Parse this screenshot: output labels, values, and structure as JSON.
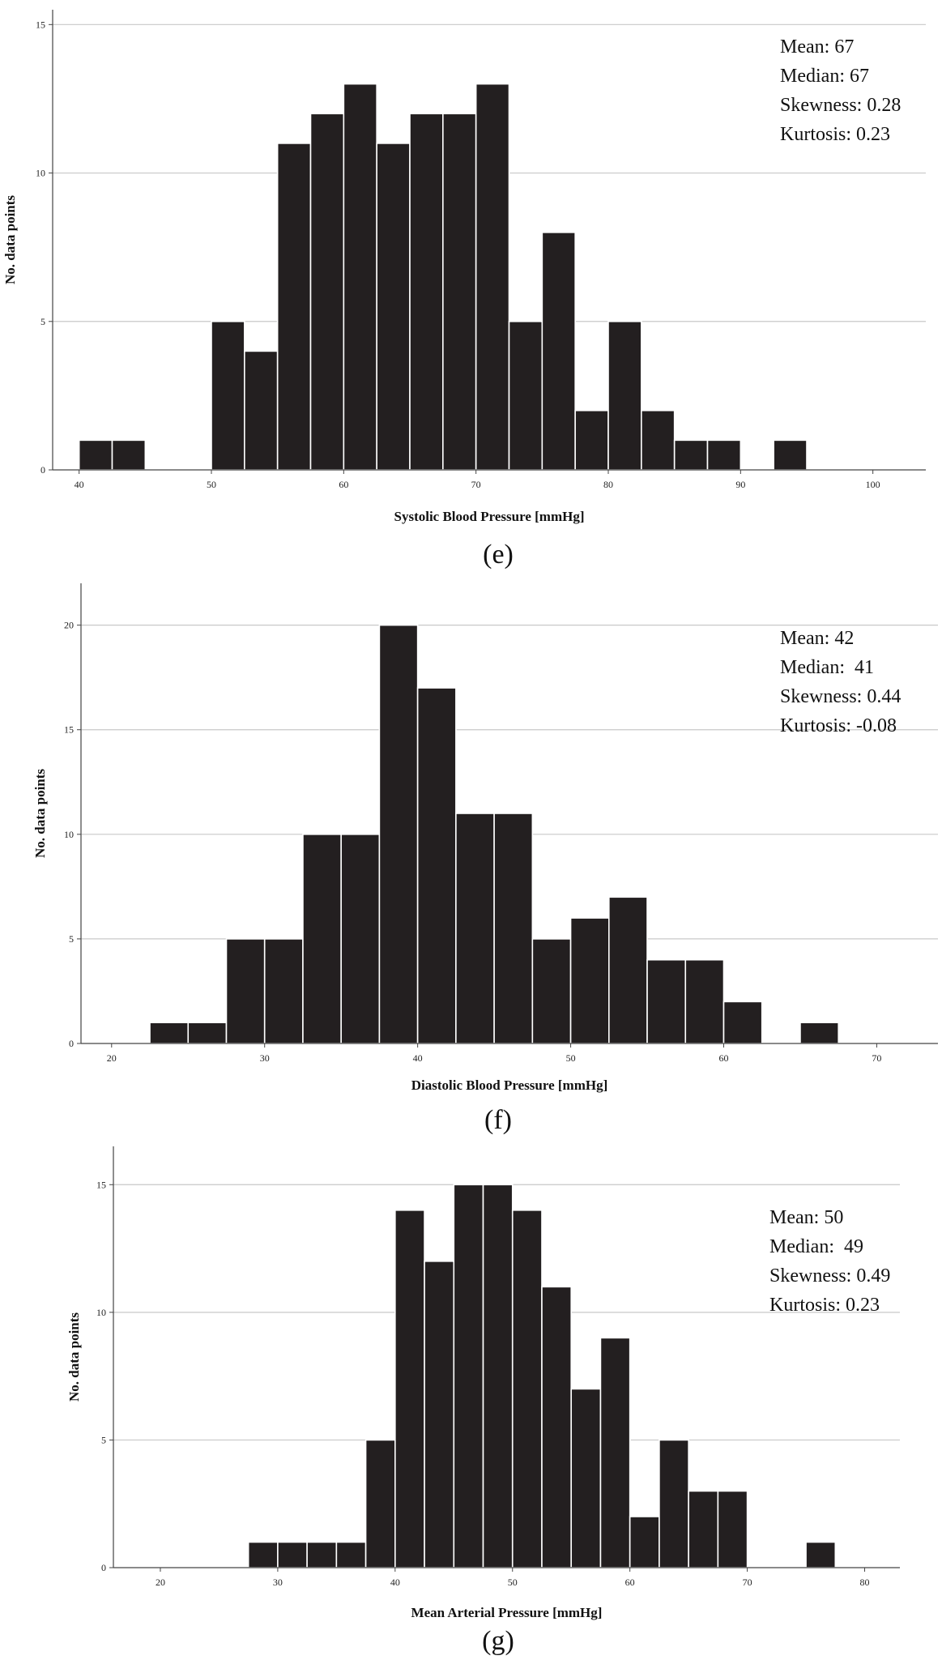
{
  "chart_data": [
    {
      "type": "bar",
      "panel_label": "(e)",
      "xlabel": "Systolic Blood Pressure [mmHg]",
      "ylabel": "No. data points",
      "xlim": [
        38,
        104
      ],
      "ylim": [
        0,
        15.5
      ],
      "bin_width": 2.5,
      "xticks": [
        40,
        50,
        60,
        70,
        80,
        90,
        100
      ],
      "yticks": [
        0,
        5,
        10,
        15
      ],
      "grid": "horizontal",
      "stats": [
        "Mean: 67",
        "Median: 67",
        "Skewness: 0.28",
        "Kurtosis: 0.23"
      ],
      "bins": [
        {
          "x": 42.5,
          "value": 1
        },
        {
          "x": 45,
          "value": 1
        },
        {
          "x": 52.5,
          "value": 5
        },
        {
          "x": 55,
          "value": 4
        },
        {
          "x": 57.5,
          "value": 11
        },
        {
          "x": 60,
          "value": 12
        },
        {
          "x": 62.5,
          "value": 13
        },
        {
          "x": 65,
          "value": 11
        },
        {
          "x": 67.5,
          "value": 12
        },
        {
          "x": 70,
          "value": 12
        },
        {
          "x": 72.5,
          "value": 13
        },
        {
          "x": 75,
          "value": 5
        },
        {
          "x": 77.5,
          "value": 8
        },
        {
          "x": 80,
          "value": 2
        },
        {
          "x": 82.5,
          "value": 5
        },
        {
          "x": 85,
          "value": 2
        },
        {
          "x": 87.5,
          "value": 1
        },
        {
          "x": 90,
          "value": 1
        },
        {
          "x": 95,
          "value": 1
        }
      ]
    },
    {
      "type": "bar",
      "panel_label": "(f)",
      "xlabel": "Diastolic Blood Pressure [mmHg]",
      "ylabel": "No. data points",
      "xlim": [
        18,
        74
      ],
      "ylim": [
        0,
        22
      ],
      "bin_width": 2.5,
      "xticks": [
        20,
        30,
        40,
        50,
        60,
        70
      ],
      "yticks": [
        0,
        5,
        10,
        15,
        20
      ],
      "grid": "horizontal",
      "stats": [
        "Mean: 42",
        "Median:  41",
        "Skewness: 0.44",
        "Kurtosis: -0.08"
      ],
      "bins": [
        {
          "x": 25,
          "value": 1
        },
        {
          "x": 27.5,
          "value": 1
        },
        {
          "x": 30,
          "value": 5
        },
        {
          "x": 32.5,
          "value": 5
        },
        {
          "x": 35,
          "value": 10
        },
        {
          "x": 37.5,
          "value": 10
        },
        {
          "x": 40,
          "value": 20
        },
        {
          "x": 42.5,
          "value": 17
        },
        {
          "x": 45,
          "value": 11
        },
        {
          "x": 47.5,
          "value": 11
        },
        {
          "x": 50,
          "value": 5
        },
        {
          "x": 52.5,
          "value": 6
        },
        {
          "x": 55,
          "value": 7
        },
        {
          "x": 57.5,
          "value": 4
        },
        {
          "x": 60,
          "value": 4
        },
        {
          "x": 62.5,
          "value": 2
        },
        {
          "x": 67.5,
          "value": 1
        }
      ]
    },
    {
      "type": "bar",
      "panel_label": "(g)",
      "xlabel": "Mean Arterial Pressure [mmHg]",
      "ylabel": "No. data points",
      "xlim": [
        16,
        83
      ],
      "ylim": [
        0,
        16.5
      ],
      "bin_width": 2.5,
      "xticks": [
        20,
        30,
        40,
        50,
        60,
        70,
        80
      ],
      "yticks": [
        0,
        5,
        10,
        15
      ],
      "grid": "horizontal",
      "stats": [
        "Mean: 50",
        "Median:  49",
        "Skewness: 0.49",
        "Kurtosis: 0.23"
      ],
      "bins": [
        {
          "x": 30,
          "value": 1
        },
        {
          "x": 32.5,
          "value": 1
        },
        {
          "x": 35,
          "value": 1
        },
        {
          "x": 37.5,
          "value": 1
        },
        {
          "x": 40,
          "value": 5
        },
        {
          "x": 42.5,
          "value": 14
        },
        {
          "x": 45,
          "value": 12
        },
        {
          "x": 47.5,
          "value": 15
        },
        {
          "x": 50,
          "value": 15
        },
        {
          "x": 52.5,
          "value": 14
        },
        {
          "x": 55,
          "value": 11
        },
        {
          "x": 57.5,
          "value": 7
        },
        {
          "x": 60,
          "value": 9
        },
        {
          "x": 62.5,
          "value": 2
        },
        {
          "x": 65,
          "value": 5
        },
        {
          "x": 67.5,
          "value": 3
        },
        {
          "x": 70,
          "value": 3
        },
        {
          "x": 77.5,
          "value": 1
        }
      ]
    }
  ]
}
